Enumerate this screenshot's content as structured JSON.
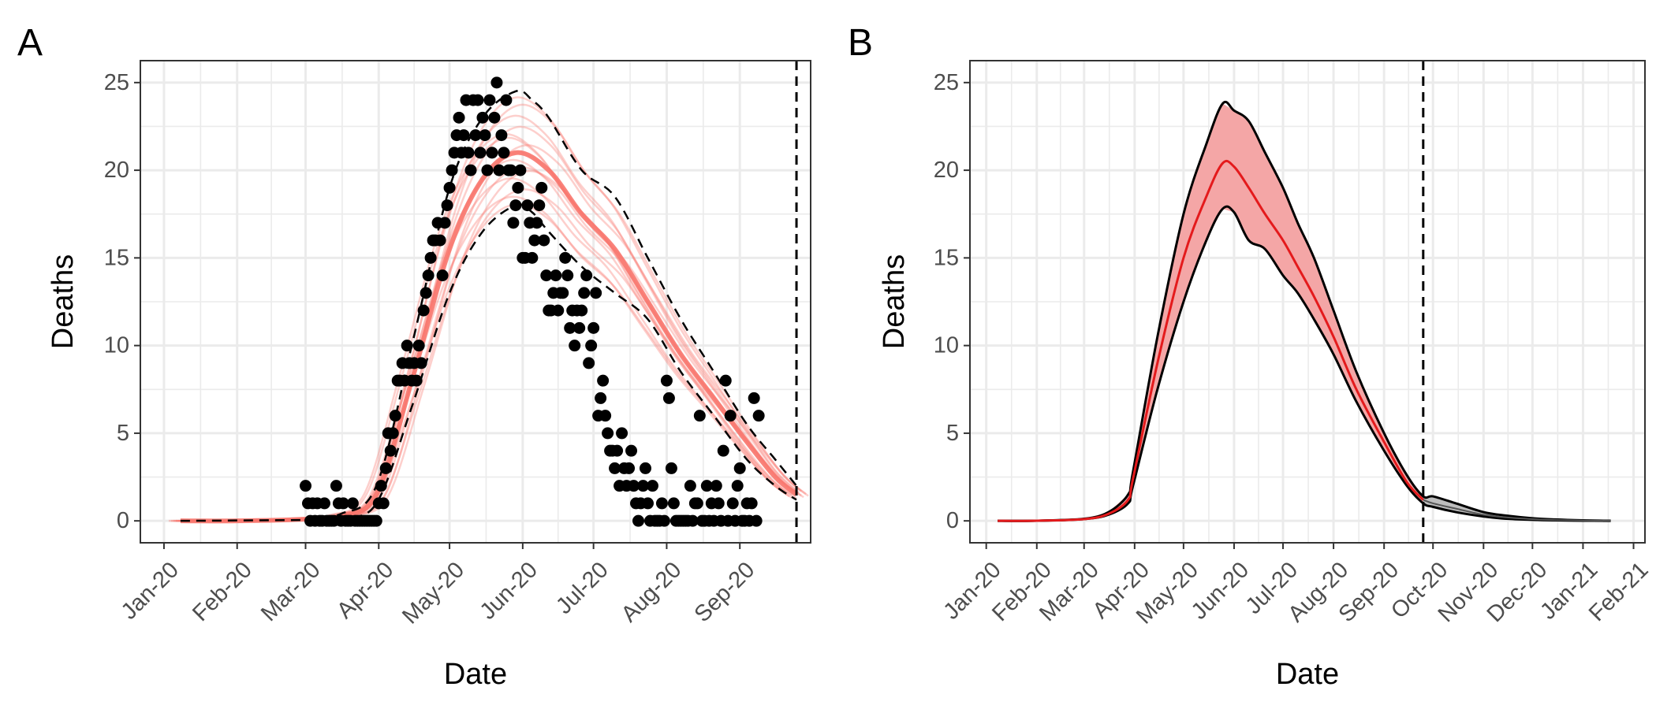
{
  "colors": {
    "ensemble_line": "#f8766d",
    "mean_line": "#e41a1c",
    "ribbon_fill": "#f4a6a6",
    "tail_fill": "#bdbdbd",
    "points": "#000000",
    "grid": "#ebebeb",
    "panel_border": "#333333"
  },
  "chart_data": [
    {
      "type": "scatter",
      "panel_label": "A",
      "xlabel": "Date",
      "ylabel": "Deaths",
      "xlim": [
        "2019-12-22",
        "2020-10-01"
      ],
      "ylim": [
        -1.25,
        26.25
      ],
      "x_ticks": [
        "2020-01-01",
        "2020-02-01",
        "2020-03-01",
        "2020-04-01",
        "2020-05-01",
        "2020-06-01",
        "2020-07-01",
        "2020-08-01",
        "2020-09-01"
      ],
      "x_tick_labels": [
        "Jan-20",
        "Feb-20",
        "Mar-20",
        "Apr-20",
        "May-20",
        "Jun-20",
        "Jul-20",
        "Aug-20",
        "Sep-20"
      ],
      "y_ticks": [
        0,
        5,
        10,
        15,
        20,
        25
      ],
      "y_tick_labels": [
        "0",
        "5",
        "10",
        "15",
        "20",
        "25"
      ],
      "grid": true,
      "vline_date": "2020-09-25",
      "observed_deaths": {
        "start_date": "2020-03-01",
        "values": [
          2,
          1,
          0,
          1,
          0,
          1,
          0,
          0,
          1,
          0,
          0,
          0,
          0,
          2,
          1,
          0,
          1,
          0,
          0,
          0,
          1,
          0,
          0,
          0,
          0,
          0,
          0,
          0,
          0,
          0,
          0,
          1,
          2,
          1,
          3,
          5,
          4,
          5,
          6,
          8,
          8,
          9,
          8,
          10,
          9,
          8,
          9,
          8,
          10,
          9,
          12,
          13,
          14,
          15,
          16,
          16,
          17,
          16,
          14,
          17,
          18,
          19,
          20,
          21,
          22,
          23,
          21,
          22,
          24,
          21,
          20,
          24,
          22,
          24,
          21,
          23,
          22,
          20,
          24,
          21,
          23,
          25,
          20,
          22,
          21,
          24,
          20,
          20,
          17,
          18,
          19,
          20,
          15,
          15,
          18,
          17,
          15,
          16,
          17,
          18,
          19,
          16,
          14,
          12,
          12,
          13,
          14,
          12,
          13,
          13,
          15,
          14,
          11,
          12,
          10,
          12,
          11,
          12,
          13,
          14,
          9,
          10,
          11,
          13,
          6,
          7,
          8,
          6,
          5,
          4,
          4,
          3,
          4,
          2,
          5,
          3,
          2,
          3,
          4,
          2,
          1,
          0,
          1,
          2,
          3,
          1,
          0,
          2,
          0,
          0,
          0,
          1,
          0,
          8,
          7,
          3,
          1,
          0,
          0,
          0,
          0,
          0,
          0,
          2,
          0,
          1,
          1,
          6,
          0,
          0,
          2,
          0,
          1,
          0,
          2,
          1,
          0,
          4,
          8,
          0,
          6,
          1,
          0,
          2,
          3,
          0,
          0,
          1,
          0,
          1,
          7,
          0,
          6
        ]
      },
      "median_curve": {
        "x": [
          "2020-01-08",
          "2020-02-01",
          "2020-03-01",
          "2020-03-16",
          "2020-03-31",
          "2020-04-15",
          "2020-05-01",
          "2020-05-15",
          "2020-05-29",
          "2020-06-12",
          "2020-06-26",
          "2020-07-10",
          "2020-07-24",
          "2020-08-07",
          "2020-08-21",
          "2020-09-04",
          "2020-09-16",
          "2020-09-25"
        ],
        "y": [
          0,
          0,
          0.1,
          0.3,
          1.5,
          8,
          15.5,
          19.5,
          21,
          20,
          17.5,
          15.5,
          12.5,
          9.5,
          7,
          4.5,
          2.5,
          1.5
        ]
      },
      "lower_curve": {
        "x": [
          "2020-03-01",
          "2020-03-16",
          "2020-03-31",
          "2020-04-15",
          "2020-05-01",
          "2020-05-15",
          "2020-05-29",
          "2020-06-05",
          "2020-06-12",
          "2020-06-26",
          "2020-07-10",
          "2020-07-24",
          "2020-08-07",
          "2020-08-21",
          "2020-09-04",
          "2020-09-16",
          "2020-09-25"
        ],
        "y": [
          0.05,
          0.2,
          1,
          6.5,
          13,
          16.5,
          18,
          17.6,
          16.5,
          14.5,
          13,
          11.5,
          8.5,
          6,
          3.5,
          2,
          1.2
        ]
      },
      "upper_curve": {
        "x": [
          "2020-03-01",
          "2020-03-16",
          "2020-03-31",
          "2020-04-15",
          "2020-05-01",
          "2020-05-15",
          "2020-05-29",
          "2020-06-05",
          "2020-06-12",
          "2020-06-26",
          "2020-07-10",
          "2020-07-24",
          "2020-08-07",
          "2020-08-21",
          "2020-09-04",
          "2020-09-16",
          "2020-09-25"
        ],
        "y": [
          0.1,
          0.4,
          2,
          10,
          19,
          23,
          24.5,
          24,
          23,
          20,
          18.5,
          15,
          11.5,
          8.5,
          5.5,
          3.5,
          2
        ]
      }
    },
    {
      "type": "area",
      "panel_label": "B",
      "xlabel": "Date",
      "ylabel": "Deaths",
      "xlim": [
        "2019-12-22",
        "2021-02-08"
      ],
      "ylim": [
        -1.25,
        26.25
      ],
      "x_ticks": [
        "2020-01-01",
        "2020-02-01",
        "2020-03-01",
        "2020-04-01",
        "2020-05-01",
        "2020-06-01",
        "2020-07-01",
        "2020-08-01",
        "2020-09-01",
        "2020-10-01",
        "2020-11-01",
        "2020-12-01",
        "2021-01-01",
        "2021-02-01"
      ],
      "x_tick_labels": [
        "Jan-20",
        "Feb-20",
        "Mar-20",
        "Apr-20",
        "May-20",
        "Jun-20",
        "Jul-20",
        "Aug-20",
        "Sep-20",
        "Oct-20",
        "Nov-20",
        "Dec-20",
        "Jan-21",
        "Feb-21"
      ],
      "y_ticks": [
        0,
        5,
        10,
        15,
        20,
        25
      ],
      "y_tick_labels": [
        "0",
        "5",
        "10",
        "15",
        "20",
        "25"
      ],
      "grid": true,
      "vline_date": "2020-09-25",
      "band": {
        "x": [
          "2020-01-08",
          "2020-02-01",
          "2020-03-01",
          "2020-03-16",
          "2020-03-28",
          "2020-03-31",
          "2020-04-15",
          "2020-05-01",
          "2020-05-15",
          "2020-05-25",
          "2020-06-01",
          "2020-06-10",
          "2020-06-20",
          "2020-07-01",
          "2020-07-10",
          "2020-07-20",
          "2020-08-01",
          "2020-08-15",
          "2020-09-01",
          "2020-09-15",
          "2020-09-25",
          "2020-10-01",
          "2020-10-15",
          "2020-11-01",
          "2020-11-15",
          "2020-12-01",
          "2020-12-15",
          "2021-01-01",
          "2021-01-18"
        ],
        "mean": [
          0,
          0.01,
          0.1,
          0.4,
          1.2,
          2.4,
          9,
          15,
          18.5,
          20.4,
          20.2,
          19,
          17.5,
          16,
          14.5,
          12.8,
          10.5,
          7.5,
          4.5,
          2.2,
          1.2,
          1.0,
          0.7,
          0.35,
          0.2,
          0.1,
          0.05,
          0.02,
          0
        ],
        "lower": [
          0,
          0.01,
          0.1,
          0.35,
          1.0,
          2.0,
          7.5,
          12.5,
          16,
          17.8,
          17.6,
          16,
          15.5,
          14,
          13,
          11.5,
          9.5,
          6.8,
          4.0,
          2.0,
          1.0,
          0.8,
          0.5,
          0.25,
          0.12,
          0.06,
          0.03,
          0.01,
          0
        ],
        "upper": [
          0,
          0.01,
          0.12,
          0.5,
          1.5,
          2.8,
          10.5,
          17.5,
          21.5,
          23.8,
          23.4,
          22.8,
          21,
          19,
          17,
          15,
          12,
          8.5,
          5,
          2.6,
          1.4,
          1.4,
          1.0,
          0.5,
          0.3,
          0.15,
          0.08,
          0.03,
          0
        ]
      }
    }
  ]
}
